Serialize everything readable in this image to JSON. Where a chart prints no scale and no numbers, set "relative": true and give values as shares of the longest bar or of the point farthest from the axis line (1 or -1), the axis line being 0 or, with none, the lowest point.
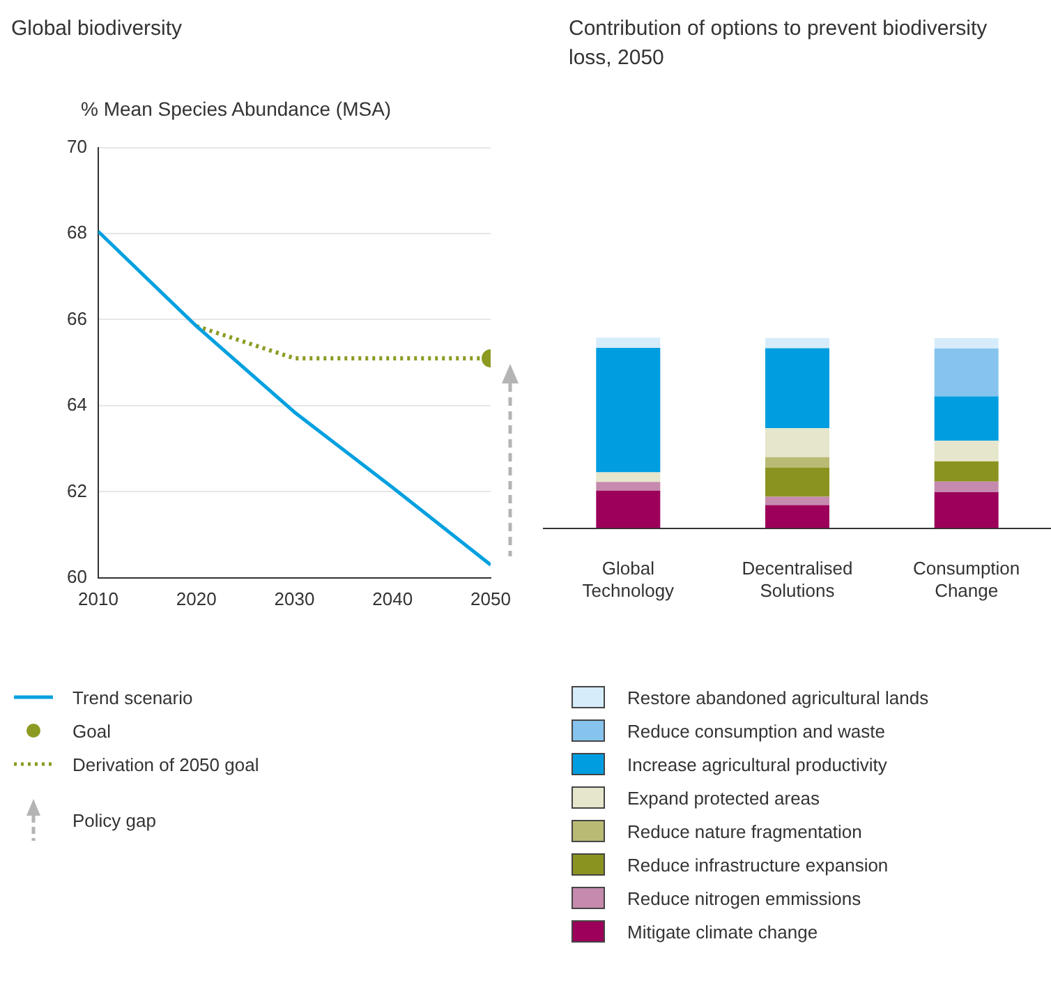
{
  "chart_data": [
    {
      "type": "line",
      "title": "Global biodiversity",
      "ylabel": "% Mean Species Abundance (MSA)",
      "xlim": [
        2010,
        2050
      ],
      "xticks": [
        2010,
        2020,
        2030,
        2040,
        2050
      ],
      "ylim": [
        60,
        70
      ],
      "yticks": [
        60,
        62,
        64,
        66,
        68,
        70
      ],
      "grid": "y",
      "legend": "bottom",
      "annotations": [
        "Policy gap"
      ],
      "series": [
        {
          "name": "Trend scenario",
          "type": "line",
          "line_style": "solid",
          "marker": "none",
          "color": "#00a0e0",
          "x": [
            2010,
            2020,
            2030,
            2040,
            2050
          ],
          "values": [
            68.05,
            65.85,
            63.85,
            62.1,
            60.3
          ]
        },
        {
          "name": "Goal",
          "type": "scatter",
          "marker": "circle",
          "color": "#8c9a22",
          "x": [
            2050
          ],
          "values": [
            65.1
          ]
        },
        {
          "name": "Derivation of 2050 goal",
          "type": "line",
          "line_style": "dotted",
          "marker": "none",
          "color": "#8c9a22",
          "x": [
            2020,
            2030,
            2050
          ],
          "values": [
            65.85,
            65.1,
            65.1
          ]
        }
      ]
    },
    {
      "type": "bar",
      "title": "Contribution of options to prevent biodiversity loss, 2050",
      "categories": [
        "Global Technology",
        "Decentralised Solutions",
        "Consumption Change"
      ],
      "stacked": true,
      "relative": true,
      "legend": "bottom",
      "series": [
        {
          "name": "Mitigate climate change",
          "color": "#9c005a",
          "values": [
            0.197,
            0.121,
            0.189
          ]
        },
        {
          "name": "Reduce nitrogen emmissions",
          "color": "#c68aae",
          "values": [
            0.046,
            0.044,
            0.056
          ]
        },
        {
          "name": "Reduce infrastructure expansion",
          "color": "#8a9320",
          "values": [
            0,
            0.154,
            0.106
          ]
        },
        {
          "name": "Reduce nature fragmentation",
          "color": "#b9bb74",
          "values": [
            0,
            0.054,
            0
          ]
        },
        {
          "name": "Expand protected areas",
          "color": "#e6e6cc",
          "values": [
            0.05,
            0.152,
            0.108
          ]
        },
        {
          "name": "Increase agricultural productivity",
          "color": "#009ee0",
          "values": [
            0.653,
            0.42,
            0.233
          ]
        },
        {
          "name": "Reduce consumption and waste",
          "color": "#86c4ee",
          "values": [
            0,
            0,
            0.252
          ]
        },
        {
          "name": "Restore abandoned agricultural lands",
          "color": "#d6ecfa",
          "values": [
            0.054,
            0.054,
            0.054
          ]
        }
      ]
    }
  ]
}
